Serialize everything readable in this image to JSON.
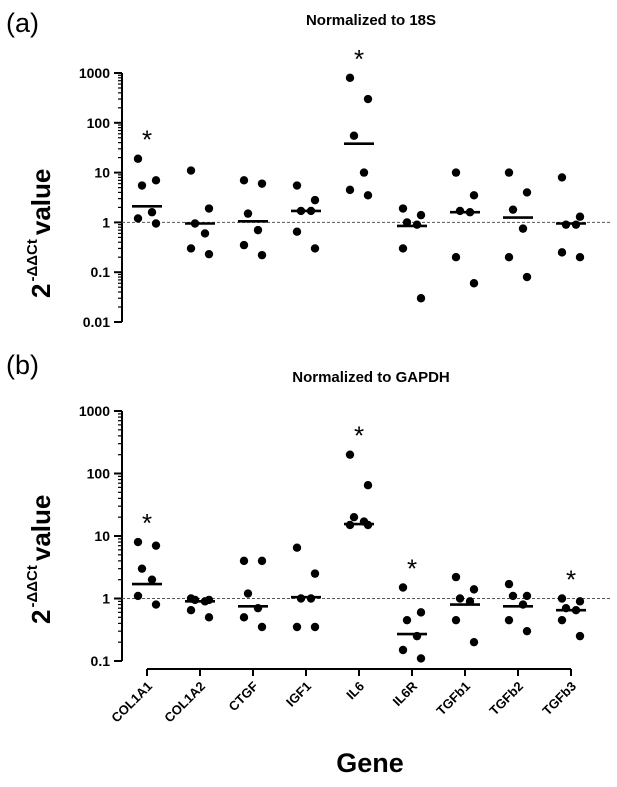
{
  "chart_data": [
    {
      "type": "scatter",
      "panel_label": "(a)",
      "title": "Normalized to 18S",
      "ylabel": {
        "base": "2",
        "exponent": "-ΔΔCt",
        "word": "value"
      },
      "xlabel": "",
      "yscale": "log",
      "ylim": [
        0.01,
        1000
      ],
      "yticks": [
        "0.01",
        "0.1",
        "1",
        "10",
        "100",
        "1000"
      ],
      "reference_line": 1,
      "categories": [
        "COL1A1",
        "COL1A2",
        "CTGF",
        "IGF1",
        "IL6",
        "IL6R",
        "TGFb1",
        "TGFb2",
        "TGFb3"
      ],
      "series": [
        {
          "gene": "COL1A1",
          "points": [
            19,
            7,
            5.5,
            1.6,
            1.2,
            0.95
          ],
          "median": 2.1,
          "significant": true
        },
        {
          "gene": "COL1A2",
          "points": [
            11,
            1.9,
            0.95,
            0.6,
            0.3,
            0.23
          ],
          "median": 0.95,
          "significant": false
        },
        {
          "gene": "CTGF",
          "points": [
            7,
            6,
            1.5,
            0.7,
            0.35,
            0.22
          ],
          "median": 1.05,
          "significant": false
        },
        {
          "gene": "IGF1",
          "points": [
            5.5,
            2.8,
            1.7,
            1.7,
            0.65,
            0.3
          ],
          "median": 1.7,
          "significant": false
        },
        {
          "gene": "IL6",
          "points": [
            800,
            300,
            55,
            10,
            4.5,
            3.5
          ],
          "median": 38,
          "significant": true
        },
        {
          "gene": "IL6R",
          "points": [
            1.9,
            1.4,
            1.0,
            0.9,
            0.3,
            0.03
          ],
          "median": 0.85,
          "significant": false
        },
        {
          "gene": "TGFb1",
          "points": [
            10,
            3.5,
            1.7,
            1.6,
            0.2,
            0.06
          ],
          "median": 1.6,
          "significant": false
        },
        {
          "gene": "TGFb2",
          "points": [
            10,
            4,
            1.8,
            0.75,
            0.2,
            0.08
          ],
          "median": 1.25,
          "significant": false
        },
        {
          "gene": "TGFb3",
          "points": [
            8,
            1.3,
            0.9,
            0.9,
            0.25,
            0.2
          ],
          "median": 0.95,
          "significant": false
        }
      ]
    },
    {
      "type": "scatter",
      "panel_label": "(b)",
      "title": "Normalized to GAPDH",
      "ylabel": {
        "base": "2",
        "exponent": "-ΔΔCt",
        "word": "value"
      },
      "xlabel": "Gene",
      "yscale": "log",
      "ylim": [
        0.1,
        1000
      ],
      "yticks": [
        "0.1",
        "1",
        "10",
        "100",
        "1000"
      ],
      "reference_line": 1,
      "categories": [
        "COL1A1",
        "COL1A2",
        "CTGF",
        "IGF1",
        "IL6",
        "IL6R",
        "TGFb1",
        "TGFb2",
        "TGFb3"
      ],
      "series": [
        {
          "gene": "COL1A1",
          "points": [
            8,
            7,
            3,
            2,
            1.1,
            0.8
          ],
          "median": 1.7,
          "significant": true
        },
        {
          "gene": "COL1A2",
          "points": [
            1.0,
            0.95,
            0.95,
            0.9,
            0.65,
            0.5
          ],
          "median": 0.9,
          "significant": false
        },
        {
          "gene": "CTGF",
          "points": [
            4,
            4,
            1.2,
            0.7,
            0.5,
            0.35
          ],
          "median": 0.75,
          "significant": false
        },
        {
          "gene": "IGF1",
          "points": [
            6.5,
            2.5,
            1.0,
            1.0,
            0.35,
            0.35
          ],
          "median": 1.05,
          "significant": false
        },
        {
          "gene": "IL6",
          "points": [
            200,
            65,
            20,
            17,
            15,
            15
          ],
          "median": 15.5,
          "significant": true
        },
        {
          "gene": "IL6R",
          "points": [
            1.5,
            0.6,
            0.45,
            0.25,
            0.15,
            0.11
          ],
          "median": 0.27,
          "significant": true
        },
        {
          "gene": "TGFb1",
          "points": [
            2.2,
            1.4,
            1.0,
            0.9,
            0.45,
            0.2
          ],
          "median": 0.8,
          "significant": false
        },
        {
          "gene": "TGFb2",
          "points": [
            1.7,
            1.1,
            1.1,
            0.8,
            0.45,
            0.3
          ],
          "median": 0.75,
          "significant": false
        },
        {
          "gene": "TGFb3",
          "points": [
            1.0,
            0.9,
            0.7,
            0.65,
            0.45,
            0.25
          ],
          "median": 0.65,
          "significant": true
        }
      ]
    }
  ],
  "significance_symbol": "*"
}
